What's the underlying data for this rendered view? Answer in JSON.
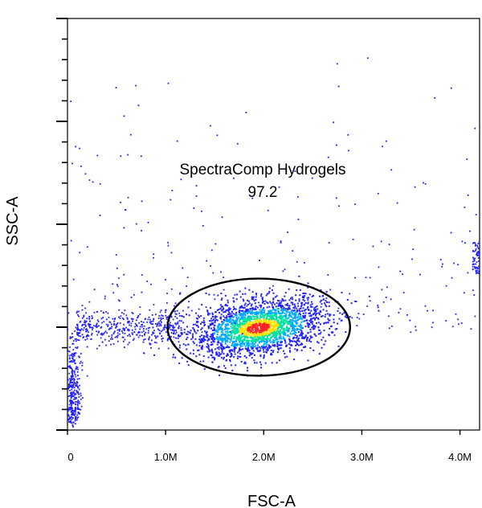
{
  "chart_data": {
    "type": "scatter",
    "subtype": "flow-cytometry-density-dot-plot",
    "xlabel": "FSC-A",
    "ylabel": "SSC-A",
    "xlim": [
      0,
      4200000
    ],
    "ylim": [
      0,
      1000000
    ],
    "x_ticks": [
      {
        "value": 0,
        "label": "0"
      },
      {
        "value": 1000000,
        "label": "1.0M"
      },
      {
        "value": 2000000,
        "label": "2.0M"
      },
      {
        "value": 3000000,
        "label": "3.0M"
      },
      {
        "value": 4000000,
        "label": "4.0M"
      }
    ],
    "y_major_ticks": [
      0,
      250000,
      500000,
      750000,
      1000000
    ],
    "y_minor_ticks_per_major": 4,
    "y_tick_labels_shown": false,
    "gate": {
      "shape": "ellipse",
      "name": "SpectraComp Hydrogels",
      "percent": "97.2",
      "center": [
        1950000,
        250000
      ],
      "radius_x": 930000,
      "radius_y": 118000
    },
    "population": {
      "center": [
        1950000,
        248000
      ],
      "spread_x": 310000,
      "spread_y": 34000
    },
    "density_colors": [
      "#1f1fff",
      "#00a8ff",
      "#00e0a0",
      "#ffe000",
      "#ff2020"
    ],
    "grid": false
  }
}
